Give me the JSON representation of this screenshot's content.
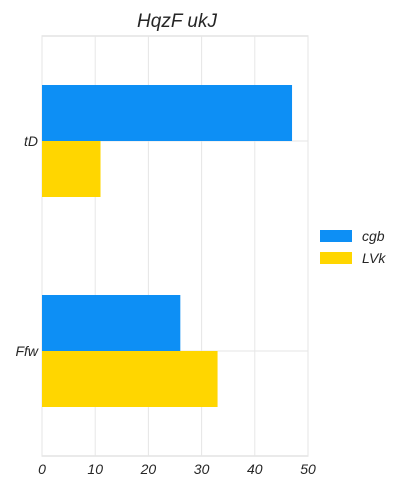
{
  "chart_data": {
    "type": "bar",
    "orientation": "horizontal",
    "title": "HqzF ukJ",
    "xlabel": "",
    "ylabel": "",
    "categories": [
      "tD",
      "Ffw"
    ],
    "series": [
      {
        "name": "cgb",
        "values": [
          47,
          26
        ],
        "color": "#0d8ff5"
      },
      {
        "name": "LVk",
        "values": [
          11,
          33
        ],
        "color": "#ffd600"
      }
    ],
    "xlim": [
      0,
      50
    ],
    "xticks": [
      "0",
      "10",
      "20",
      "30",
      "40",
      "50"
    ],
    "grid": true,
    "legend": "right"
  }
}
